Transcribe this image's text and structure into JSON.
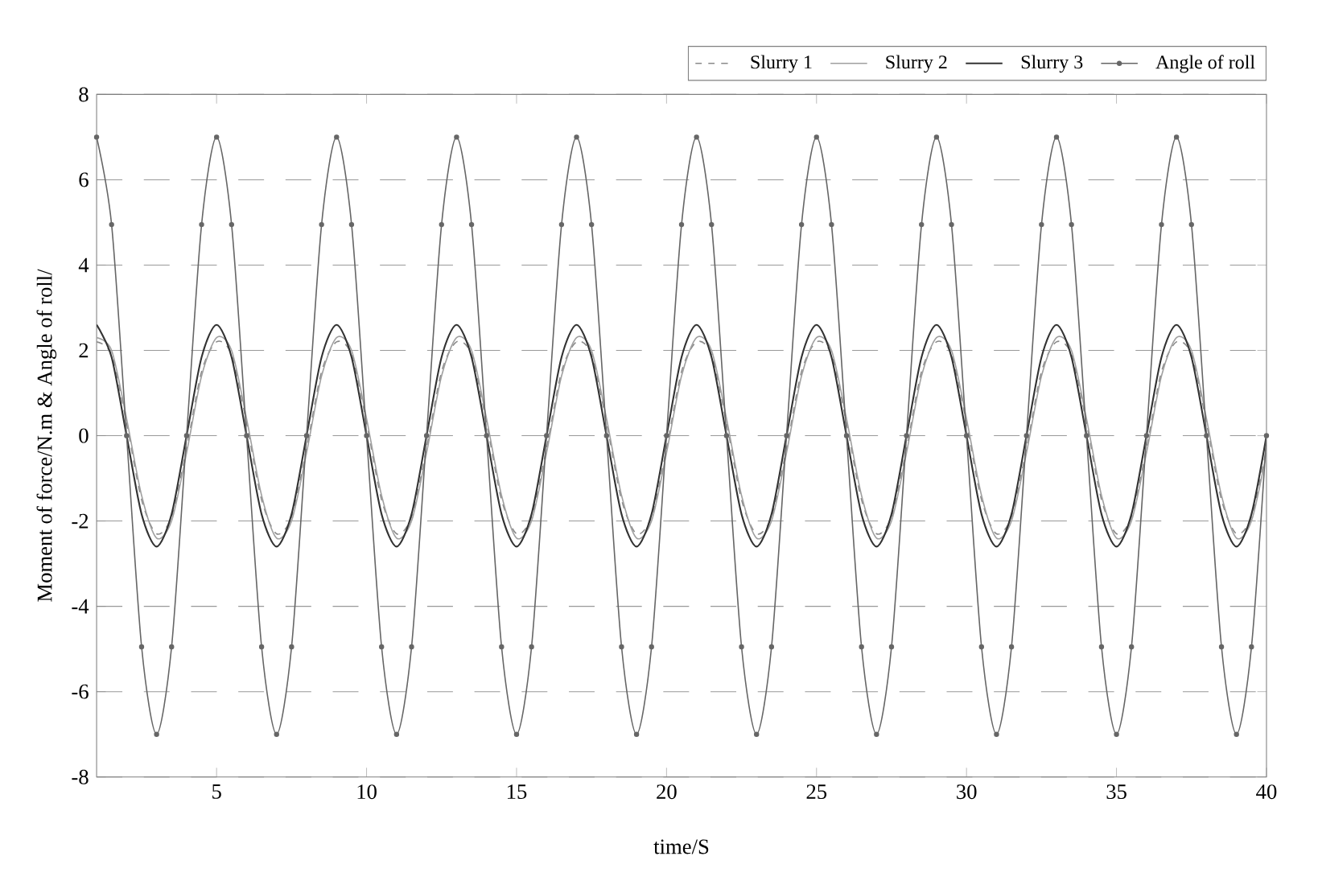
{
  "chart_data": {
    "type": "line",
    "xlabel": "time/S",
    "ylabel": "Moment of force/N.m & Angle of roll/",
    "x": [
      1,
      1.5,
      2,
      2.5,
      3,
      3.5,
      4,
      4.5,
      5,
      5.5,
      6,
      6.5,
      7,
      7.5,
      8,
      8.5,
      9,
      9.5,
      10,
      10.5,
      11,
      11.5,
      12,
      12.5,
      13,
      13.5,
      14,
      14.5,
      15,
      15.5,
      16,
      16.5,
      17,
      17.5,
      18,
      18.5,
      19,
      19.5,
      20,
      20.5,
      21,
      21.5,
      22,
      22.5,
      23,
      23.5,
      24,
      24.5,
      25,
      25.5,
      26,
      26.5,
      27,
      27.5,
      28,
      28.5,
      29,
      29.5,
      30,
      30.5,
      31,
      31.5,
      32,
      32.5,
      33,
      33.5,
      34,
      34.5,
      35,
      35.5,
      36,
      36.5,
      37,
      37.5,
      38,
      38.5,
      39,
      39.5,
      40
    ],
    "series": [
      {
        "name": "Slurry 1",
        "color": "#8a8a8a",
        "line_style": "dashed",
        "values": [
          2.2,
          1.9,
          0.3,
          -1.5,
          -2.3,
          -1.9,
          -0.3,
          1.5,
          2.2,
          1.9,
          0.3,
          -1.5,
          -2.3,
          -1.9,
          -0.3,
          1.5,
          2.2,
          1.9,
          0.3,
          -1.5,
          -2.3,
          -1.9,
          -0.3,
          1.5,
          2.2,
          1.9,
          0.3,
          -1.5,
          -2.3,
          -1.9,
          -0.3,
          1.5,
          2.2,
          1.9,
          0.3,
          -1.5,
          -2.3,
          -1.9,
          -0.3,
          1.5,
          2.2,
          1.9,
          0.3,
          -1.5,
          -2.3,
          -1.9,
          -0.3,
          1.5,
          2.2,
          1.9,
          0.3,
          -1.5,
          -2.3,
          -1.9,
          -0.3,
          1.5,
          2.2,
          1.9,
          0.3,
          -1.5,
          -2.3,
          -1.9,
          -0.3,
          1.5,
          2.2,
          1.9,
          0.3,
          -1.5,
          -2.3,
          -1.9,
          -0.3,
          1.5,
          2.2,
          1.9,
          0.3,
          -1.5,
          -2.3,
          -1.9,
          -0.3
        ]
      },
      {
        "name": "Slurry 2",
        "color": "#a0a0a0",
        "line_style": "solid",
        "values": [
          2.3,
          2.0,
          0.4,
          -1.4,
          -2.4,
          -2.0,
          -0.4,
          1.4,
          2.3,
          2.0,
          0.4,
          -1.4,
          -2.4,
          -2.0,
          -0.4,
          1.4,
          2.3,
          2.0,
          0.4,
          -1.4,
          -2.4,
          -2.0,
          -0.4,
          1.4,
          2.3,
          2.0,
          0.4,
          -1.4,
          -2.4,
          -2.0,
          -0.4,
          1.4,
          2.3,
          2.0,
          0.4,
          -1.4,
          -2.4,
          -2.0,
          -0.4,
          1.4,
          2.3,
          2.0,
          0.4,
          -1.4,
          -2.4,
          -2.0,
          -0.4,
          1.4,
          2.3,
          2.0,
          0.4,
          -1.4,
          -2.4,
          -2.0,
          -0.4,
          1.4,
          2.3,
          2.0,
          0.4,
          -1.4,
          -2.4,
          -2.0,
          -0.4,
          1.4,
          2.3,
          2.0,
          0.4,
          -1.4,
          -2.4,
          -2.0,
          -0.4,
          1.4,
          2.3,
          2.0,
          0.4,
          -1.4,
          -2.4,
          -2.0,
          -0.4
        ]
      },
      {
        "name": "Slurry 3",
        "color": "#333333",
        "line_style": "solid",
        "values": [
          2.6,
          1.84,
          0,
          -1.84,
          -2.6,
          -1.84,
          0,
          1.84,
          2.6,
          1.84,
          0,
          -1.84,
          -2.6,
          -1.84,
          0,
          1.84,
          2.6,
          1.84,
          0,
          -1.84,
          -2.6,
          -1.84,
          0,
          1.84,
          2.6,
          1.84,
          0,
          -1.84,
          -2.6,
          -1.84,
          0,
          1.84,
          2.6,
          1.84,
          0,
          -1.84,
          -2.6,
          -1.84,
          0,
          1.84,
          2.6,
          1.84,
          0,
          -1.84,
          -2.6,
          -1.84,
          0,
          1.84,
          2.6,
          1.84,
          0,
          -1.84,
          -2.6,
          -1.84,
          0,
          1.84,
          2.6,
          1.84,
          0,
          -1.84,
          -2.6,
          -1.84,
          0,
          1.84,
          2.6,
          1.84,
          0,
          -1.84,
          -2.6,
          -1.84,
          0,
          1.84,
          2.6,
          1.84,
          0,
          -1.84,
          -2.6,
          -1.84,
          0
        ]
      },
      {
        "name": "Angle of roll",
        "color": "#666666",
        "line_style": "solid",
        "marker": "circle",
        "values": [
          7,
          4.95,
          0,
          -4.95,
          -7,
          -4.95,
          0,
          4.95,
          7,
          4.95,
          0,
          -4.95,
          -7,
          -4.95,
          0,
          4.95,
          7,
          4.95,
          0,
          -4.95,
          -7,
          -4.95,
          0,
          4.95,
          7,
          4.95,
          0,
          -4.95,
          -7,
          -4.95,
          0,
          4.95,
          7,
          4.95,
          0,
          -4.95,
          -7,
          -4.95,
          0,
          4.95,
          7,
          4.95,
          0,
          -4.95,
          -7,
          -4.95,
          0,
          4.95,
          7,
          4.95,
          0,
          -4.95,
          -7,
          -4.95,
          0,
          4.95,
          7,
          4.95,
          0,
          -4.95,
          -7,
          -4.95,
          0,
          4.95,
          7,
          4.95,
          0,
          -4.95,
          -7,
          -4.95,
          0,
          4.95,
          7,
          4.95,
          0,
          -4.95,
          -7,
          -4.95,
          0
        ]
      }
    ],
    "xlim": [
      1,
      40
    ],
    "ylim": [
      -8,
      8
    ],
    "xticks": [
      5,
      10,
      15,
      20,
      25,
      30,
      35,
      40
    ],
    "yticks": [
      -8,
      -6,
      -4,
      -2,
      0,
      2,
      4,
      6,
      8
    ],
    "grid": "y",
    "legend": "top right"
  }
}
